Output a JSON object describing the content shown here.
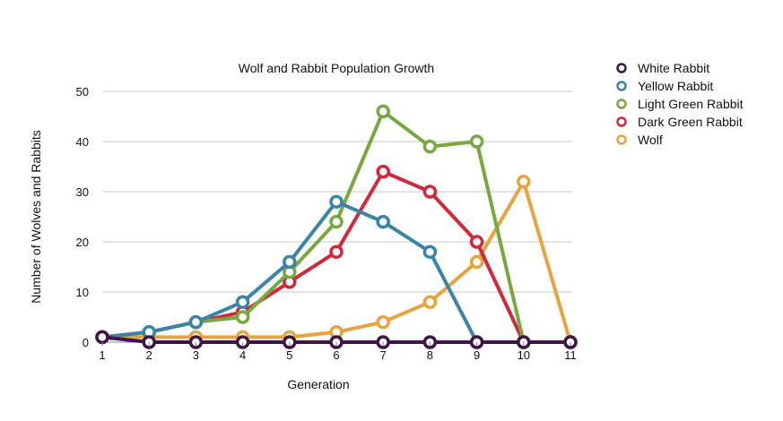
{
  "chart_data": {
    "type": "line",
    "title": "Wolf and Rabbit Population Growth",
    "xlabel": "Generation",
    "ylabel": "Number of Wolves and Rabbits",
    "categories": [
      "1",
      "2",
      "3",
      "4",
      "5",
      "6",
      "7",
      "8",
      "9",
      "10",
      "11"
    ],
    "y_ticks": [
      "0",
      "10",
      "20",
      "30",
      "40",
      "50"
    ],
    "ylim": [
      0,
      50
    ],
    "grid": true,
    "legend_position": "top-right",
    "series": [
      {
        "name": "Wolf",
        "color": "#e9a33d",
        "values": [
          1,
          1,
          1,
          1,
          1,
          2,
          4,
          8,
          16,
          32,
          0
        ]
      },
      {
        "name": "Dark Green Rabbit",
        "color": "#d1283a",
        "values": [
          1,
          2,
          4,
          6,
          12,
          18,
          34,
          30,
          20,
          0,
          0
        ]
      },
      {
        "name": "Light Green Rabbit",
        "color": "#78a840",
        "values": [
          1,
          2,
          4,
          5,
          14,
          24,
          46,
          39,
          40,
          0,
          0
        ]
      },
      {
        "name": "Yellow Rabbit",
        "color": "#3a84a8",
        "values": [
          1,
          2,
          4,
          8,
          16,
          28,
          24,
          18,
          0,
          0,
          0
        ]
      },
      {
        "name": "White Rabbit",
        "color": "#3f1548",
        "values": [
          1,
          0,
          0,
          0,
          0,
          0,
          0,
          0,
          0,
          0,
          0
        ]
      }
    ],
    "legend_order": [
      "White Rabbit",
      "Yellow Rabbit",
      "Light Green Rabbit",
      "Dark Green Rabbit",
      "Wolf"
    ]
  }
}
